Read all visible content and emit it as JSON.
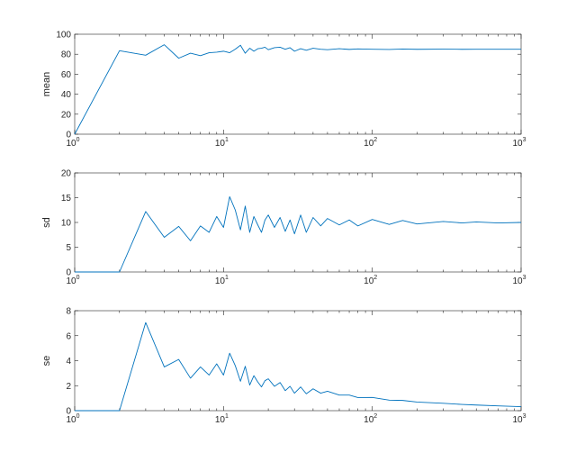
{
  "colors": {
    "series": "#0072BD",
    "axes": "#262626",
    "background": "#ffffff"
  },
  "chart_data": [
    {
      "type": "line",
      "ylabel": "mean",
      "xscale": "log",
      "xlim": [
        1,
        1000
      ],
      "ylim": [
        0,
        100
      ],
      "yticks": [
        0,
        20,
        40,
        60,
        80,
        100
      ],
      "xtick_labels": [
        {
          "base": "10",
          "exp": "0"
        },
        {
          "base": "10",
          "exp": "1"
        },
        {
          "base": "10",
          "exp": "2"
        },
        {
          "base": "10",
          "exp": "3"
        }
      ],
      "grid": false,
      "series": [
        {
          "x": [
            1,
            2,
            3,
            4,
            5,
            6,
            7,
            8,
            9,
            10,
            11,
            12,
            13,
            14,
            15,
            16,
            17,
            18,
            19,
            20,
            22,
            24,
            26,
            28,
            30,
            33,
            36,
            40,
            45,
            50,
            60,
            70,
            80,
            100,
            130,
            160,
            200,
            300,
            400,
            500,
            700,
            1000
          ],
          "y": [
            0,
            83.5,
            79,
            89.5,
            76,
            81,
            78.5,
            81.5,
            82,
            83,
            81.5,
            85,
            89,
            81,
            86,
            83,
            85.5,
            86,
            87,
            84.5,
            86.5,
            87,
            85,
            86.5,
            83,
            85.5,
            84,
            86,
            85,
            84.5,
            85.5,
            84.8,
            85.3,
            85,
            84.7,
            85.2,
            84.9,
            85.1,
            84.9,
            85,
            85,
            85
          ]
        }
      ]
    },
    {
      "type": "line",
      "ylabel": "sd",
      "xscale": "log",
      "xlim": [
        1,
        1000
      ],
      "ylim": [
        0,
        20
      ],
      "yticks": [
        0,
        5,
        10,
        15,
        20
      ],
      "xtick_labels": [
        {
          "base": "10",
          "exp": "0"
        },
        {
          "base": "10",
          "exp": "1"
        },
        {
          "base": "10",
          "exp": "2"
        },
        {
          "base": "10",
          "exp": "3"
        }
      ],
      "grid": false,
      "series": [
        {
          "x": [
            1,
            2,
            3,
            4,
            5,
            6,
            7,
            8,
            9,
            10,
            11,
            12,
            13,
            14,
            15,
            16,
            17,
            18,
            19,
            20,
            22,
            24,
            26,
            28,
            30,
            33,
            36,
            40,
            45,
            50,
            60,
            70,
            80,
            100,
            130,
            160,
            200,
            300,
            400,
            500,
            700,
            1000
          ],
          "y": [
            0,
            0,
            12.2,
            7,
            9.2,
            6.3,
            9.3,
            8,
            11.2,
            9,
            15.2,
            12.5,
            8.5,
            13.3,
            8,
            11.2,
            9.5,
            8,
            10.5,
            11.5,
            9,
            11,
            8.2,
            10.5,
            7.7,
            11.5,
            8,
            11,
            9.3,
            10.8,
            9.5,
            10.5,
            9.3,
            10.6,
            9.6,
            10.4,
            9.7,
            10.2,
            9.9,
            10.1,
            9.9,
            10
          ]
        }
      ]
    },
    {
      "type": "line",
      "ylabel": "se",
      "xscale": "log",
      "xlim": [
        1,
        1000
      ],
      "ylim": [
        0,
        8
      ],
      "yticks": [
        0,
        2,
        4,
        6,
        8
      ],
      "xtick_labels": [
        {
          "base": "10",
          "exp": "0"
        },
        {
          "base": "10",
          "exp": "1"
        },
        {
          "base": "10",
          "exp": "2"
        },
        {
          "base": "10",
          "exp": "3"
        }
      ],
      "grid": false,
      "series": [
        {
          "x": [
            1,
            2,
            3,
            4,
            5,
            6,
            7,
            8,
            9,
            10,
            11,
            12,
            13,
            14,
            15,
            16,
            17,
            18,
            19,
            20,
            22,
            24,
            26,
            28,
            30,
            33,
            36,
            40,
            45,
            50,
            60,
            70,
            80,
            100,
            130,
            160,
            200,
            300,
            400,
            500,
            700,
            1000
          ],
          "y": [
            0,
            0,
            7.05,
            3.5,
            4.1,
            2.6,
            3.5,
            2.85,
            3.75,
            2.85,
            4.6,
            3.6,
            2.35,
            3.55,
            2.05,
            2.8,
            2.3,
            1.9,
            2.4,
            2.55,
            1.95,
            2.25,
            1.6,
            1.95,
            1.4,
            1.9,
            1.35,
            1.75,
            1.4,
            1.55,
            1.25,
            1.25,
            1.05,
            1.06,
            0.84,
            0.82,
            0.69,
            0.59,
            0.5,
            0.45,
            0.38,
            0.32
          ]
        }
      ]
    }
  ]
}
